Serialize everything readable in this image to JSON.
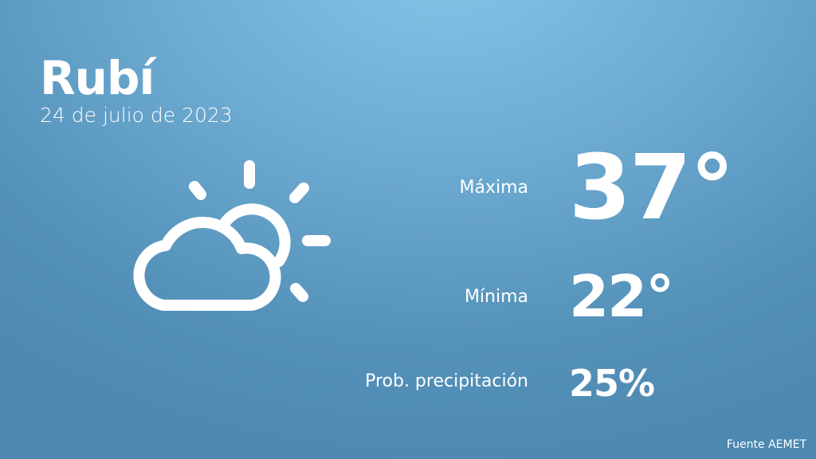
{
  "city": "Rubí",
  "date": "24 de julio de 2023",
  "icon": "partly-cloudy-icon",
  "max": {
    "label": "Máxima",
    "value": "37°"
  },
  "min": {
    "label": "Mínima",
    "value": "22°"
  },
  "precipitation": {
    "label": "Prob. precipitación",
    "value": "25%"
  },
  "source": "Fuente AEMET",
  "colors": {
    "background_top": "#86c4e8",
    "background_bottom": "#4c88b0",
    "text": "#ffffff"
  }
}
